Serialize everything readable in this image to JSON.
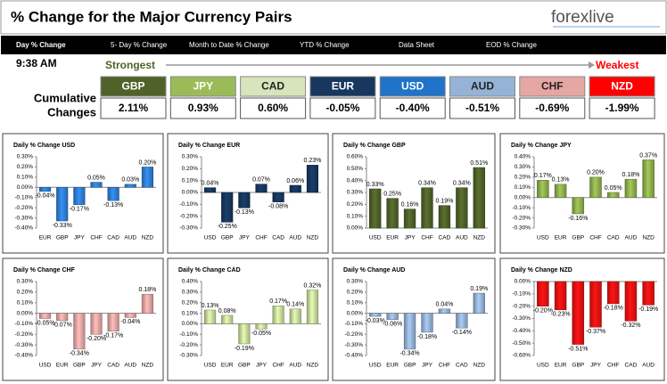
{
  "header": {
    "title": "% Change for the Major Currency Pairs",
    "logo": "forexlive"
  },
  "tabs": [
    "Day % Change",
    "5- Day % Change",
    "Month to Date % Change",
    "YTD % Change",
    "Data Sheet",
    "EOD % Change"
  ],
  "summary": {
    "time": "9:38 AM",
    "strongest": "Strongest",
    "weakest": "Weakest",
    "row_label": [
      "Cumulative",
      "Changes"
    ],
    "currencies": [
      {
        "name": "GBP",
        "value": "2.11%",
        "color": "#4f6228"
      },
      {
        "name": "JPY",
        "value": "0.93%",
        "color": "#9bbb59"
      },
      {
        "name": "CAD",
        "value": "0.60%",
        "color": "#d7e4bc"
      },
      {
        "name": "EUR",
        "value": "-0.05%",
        "color": "#17375e"
      },
      {
        "name": "USD",
        "value": "-0.40%",
        "color": "#1f73c8"
      },
      {
        "name": "AUD",
        "value": "-0.51%",
        "color": "#95b3d7"
      },
      {
        "name": "CHF",
        "value": "-0.69%",
        "color": "#e6a6a4"
      },
      {
        "name": "NZD",
        "value": "-1.99%",
        "color": "#ff0000"
      }
    ]
  },
  "chart_data": [
    {
      "type": "bar",
      "title": "Daily % Change USD",
      "color": "#2e7fd6",
      "categories": [
        "EUR",
        "GBP",
        "JPY",
        "CHF",
        "CAD",
        "AUD",
        "NZD"
      ],
      "values": [
        -0.04,
        -0.33,
        -0.17,
        0.05,
        -0.13,
        0.03,
        0.2
      ],
      "value_labels": [
        "-0.04%",
        "-0.33%",
        "-0.17%",
        "0.05%",
        "-0.13%",
        "0.03%",
        "0.20%"
      ],
      "ylim": [
        -0.4,
        0.3
      ],
      "yticks": [
        {
          "value": -0.4,
          "label": "-0.40%"
        },
        {
          "value": -0.3,
          "label": "-0.30%"
        },
        {
          "value": -0.2,
          "label": "-0.20%"
        },
        {
          "value": -0.1,
          "label": "-0.10%"
        },
        {
          "value": 0,
          "label": "0.00%"
        },
        {
          "value": 0.1,
          "label": "0.10%"
        },
        {
          "value": 0.2,
          "label": "0.20%"
        },
        {
          "value": 0.3,
          "label": "0.30%"
        }
      ]
    },
    {
      "type": "bar",
      "title": "Daily % Change EUR",
      "color": "#17375e",
      "categories": [
        "USD",
        "GBP",
        "JPY",
        "CHF",
        "CAD",
        "AUD",
        "NZD"
      ],
      "values": [
        0.04,
        -0.25,
        -0.13,
        0.07,
        -0.08,
        0.06,
        0.23
      ],
      "value_labels": [
        "0.04%",
        "-0.25%",
        "-0.13%",
        "0.07%",
        "-0.08%",
        "0.06%",
        "0.23%"
      ],
      "ylim": [
        -0.3,
        0.3
      ],
      "yticks": [
        {
          "value": -0.3,
          "label": "-0.30%"
        },
        {
          "value": -0.2,
          "label": "-0.20%"
        },
        {
          "value": -0.1,
          "label": "-0.10%"
        },
        {
          "value": 0,
          "label": "0.00%"
        },
        {
          "value": 0.1,
          "label": "0.10%"
        },
        {
          "value": 0.2,
          "label": "0.20%"
        },
        {
          "value": 0.3,
          "label": "0.30%"
        }
      ]
    },
    {
      "type": "bar",
      "title": "Daily % Change GBP",
      "color": "#4f6228",
      "categories": [
        "USD",
        "EUR",
        "JPY",
        "CHF",
        "CAD",
        "AUD",
        "NZD"
      ],
      "values": [
        0.33,
        0.25,
        0.16,
        0.34,
        0.19,
        0.34,
        0.51
      ],
      "value_labels": [
        "0.33%",
        "0.25%",
        "0.16%",
        "0.34%",
        "0.19%",
        "0.34%",
        "0.51%"
      ],
      "ylim": [
        0,
        0.6
      ],
      "yticks": [
        {
          "value": 0,
          "label": "0.00%"
        },
        {
          "value": 0.1,
          "label": "0.10%"
        },
        {
          "value": 0.2,
          "label": "0.20%"
        },
        {
          "value": 0.3,
          "label": "0.30%"
        },
        {
          "value": 0.4,
          "label": "0.40%"
        },
        {
          "value": 0.5,
          "label": "0.50%"
        },
        {
          "value": 0.6,
          "label": "0.60%"
        }
      ]
    },
    {
      "type": "bar",
      "title": "Daily % Change JPY",
      "color": "#8fb04d",
      "categories": [
        "USD",
        "EUR",
        "GBP",
        "CHF",
        "CAD",
        "AUD",
        "NZD"
      ],
      "values": [
        0.17,
        0.13,
        -0.16,
        0.2,
        0.05,
        0.18,
        0.37
      ],
      "value_labels": [
        "0.17%",
        "0.13%",
        "-0.16%",
        "0.20%",
        "0.05%",
        "0.18%",
        "0.37%"
      ],
      "ylim": [
        -0.3,
        0.4
      ],
      "yticks": [
        {
          "value": -0.3,
          "label": "-0.30%"
        },
        {
          "value": -0.2,
          "label": "-0.20%"
        },
        {
          "value": -0.1,
          "label": "-0.10%"
        },
        {
          "value": 0,
          "label": "0.00%"
        },
        {
          "value": 0.1,
          "label": "0.10%"
        },
        {
          "value": 0.2,
          "label": "0.20%"
        },
        {
          "value": 0.3,
          "label": "0.30%"
        },
        {
          "value": 0.4,
          "label": "0.40%"
        }
      ]
    },
    {
      "type": "bar",
      "title": "Daily % Change CHF",
      "color": "#e6a6a4",
      "categories": [
        "USD",
        "EUR",
        "GBP",
        "JPY",
        "CAD",
        "AUD",
        "NZD"
      ],
      "values": [
        -0.05,
        -0.07,
        -0.34,
        -0.2,
        -0.17,
        -0.04,
        0.18
      ],
      "value_labels": [
        "-0.05%",
        "-0.07%",
        "-0.34%",
        "-0.20%",
        "-0.17%",
        "-0.04%",
        "0.18%"
      ],
      "ylim": [
        -0.4,
        0.3
      ],
      "yticks": [
        {
          "value": -0.4,
          "label": "-0.40%"
        },
        {
          "value": -0.3,
          "label": "-0.30%"
        },
        {
          "value": -0.2,
          "label": "-0.20%"
        },
        {
          "value": -0.1,
          "label": "-0.10%"
        },
        {
          "value": 0,
          "label": "0.00%"
        },
        {
          "value": 0.1,
          "label": "0.10%"
        },
        {
          "value": 0.2,
          "label": "0.20%"
        },
        {
          "value": 0.3,
          "label": "0.30%"
        }
      ]
    },
    {
      "type": "bar",
      "title": "Daily % Change CAD",
      "color": "#c9dc9c",
      "categories": [
        "USD",
        "EUR",
        "GBP",
        "JPY",
        "CHF",
        "AUD",
        "NZD"
      ],
      "values": [
        0.13,
        0.08,
        -0.19,
        -0.05,
        0.17,
        0.14,
        0.32
      ],
      "value_labels": [
        "0.13%",
        "0.08%",
        "-0.19%",
        "-0.05%",
        "0.17%",
        "0.14%",
        "0.32%"
      ],
      "ylim": [
        -0.3,
        0.4
      ],
      "yticks": [
        {
          "value": -0.3,
          "label": "-0.30%"
        },
        {
          "value": -0.2,
          "label": "-0.20%"
        },
        {
          "value": -0.1,
          "label": "-0.10%"
        },
        {
          "value": 0,
          "label": "0.00%"
        },
        {
          "value": 0.1,
          "label": "0.10%"
        },
        {
          "value": 0.2,
          "label": "0.20%"
        },
        {
          "value": 0.3,
          "label": "0.30%"
        },
        {
          "value": 0.4,
          "label": "0.40%"
        }
      ]
    },
    {
      "type": "bar",
      "title": "Daily % Change AUD",
      "color": "#95b3d7",
      "categories": [
        "USD",
        "EUR",
        "GBP",
        "JPY",
        "CHF",
        "CAD",
        "NZD"
      ],
      "values": [
        -0.03,
        -0.06,
        -0.34,
        -0.18,
        0.04,
        -0.14,
        0.19
      ],
      "value_labels": [
        "-0.03%",
        "-0.06%",
        "-0.34%",
        "-0.18%",
        "0.04%",
        "-0.14%",
        "0.19%"
      ],
      "ylim": [
        -0.4,
        0.3
      ],
      "yticks": [
        {
          "value": -0.4,
          "label": "-0.40%"
        },
        {
          "value": -0.3,
          "label": "-0.30%"
        },
        {
          "value": -0.2,
          "label": "-0.20%"
        },
        {
          "value": -0.1,
          "label": "-0.10%"
        },
        {
          "value": 0,
          "label": "0.00%"
        },
        {
          "value": 0.1,
          "label": "0.10%"
        },
        {
          "value": 0.2,
          "label": "0.20%"
        },
        {
          "value": 0.3,
          "label": "0.30%"
        }
      ]
    },
    {
      "type": "bar",
      "title": "Daily % Change NZD",
      "color": "#ee1111",
      "categories": [
        "USD",
        "EUR",
        "GBP",
        "JPY",
        "CHF",
        "CAD",
        "AUD"
      ],
      "values": [
        -0.2,
        -0.23,
        -0.51,
        -0.37,
        -0.18,
        -0.32,
        -0.19
      ],
      "value_labels": [
        "-0.20%",
        "-0.23%",
        "-0.51%",
        "-0.37%",
        "-0.18%",
        "-0.32%",
        "-0.19%"
      ],
      "ylim": [
        -0.6,
        0
      ],
      "yticks": [
        {
          "value": -0.6,
          "label": "-0.60%"
        },
        {
          "value": -0.5,
          "label": "-0.50%"
        },
        {
          "value": -0.4,
          "label": "-0.40%"
        },
        {
          "value": -0.3,
          "label": "-0.30%"
        },
        {
          "value": -0.2,
          "label": "-0.20%"
        },
        {
          "value": -0.1,
          "label": "-0.10%"
        },
        {
          "value": 0,
          "label": "0.00%"
        }
      ]
    }
  ]
}
